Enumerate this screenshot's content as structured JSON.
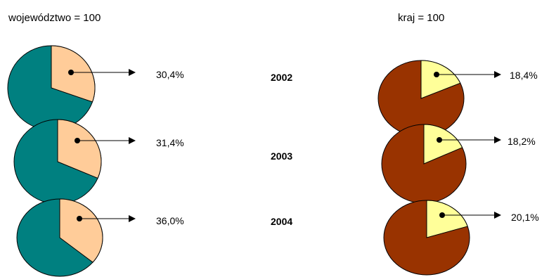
{
  "chart_data": [
    {
      "type": "pie",
      "title": "województwo  = 100",
      "categories": [
        "2002",
        "2003",
        "2004"
      ],
      "values": [
        30.4,
        31.4,
        36.0
      ],
      "value_labels": [
        "30,4%",
        "31,4%",
        "36,0%"
      ],
      "colors": {
        "highlight": "#FFCC99",
        "rest": "#008080"
      }
    },
    {
      "type": "pie",
      "title": "kraj = 100",
      "categories": [
        "2002",
        "2003",
        "2004"
      ],
      "values": [
        18.4,
        18.2,
        20.1
      ],
      "value_labels": [
        "18,4%",
        "18,2%",
        "20,1%"
      ],
      "colors": {
        "highlight": "#FFFF99",
        "rest": "#993300"
      }
    }
  ]
}
